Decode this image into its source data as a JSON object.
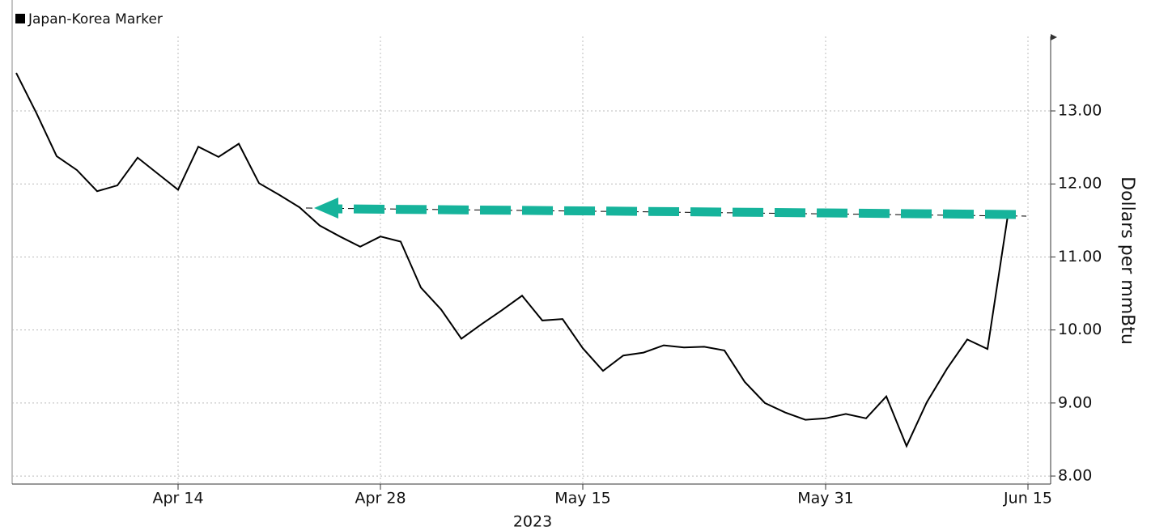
{
  "chart_data": {
    "type": "line",
    "series": [
      {
        "name": "Japan-Korea Marker",
        "color": "#000000",
        "values": [
          13.52,
          12.97,
          12.38,
          12.19,
          11.9,
          11.98,
          12.36,
          12.14,
          11.92,
          12.51,
          12.37,
          12.55,
          12.01,
          11.85,
          11.68,
          11.43,
          11.28,
          11.14,
          11.28,
          11.21,
          10.58,
          10.28,
          9.88,
          10.08,
          10.27,
          10.47,
          10.13,
          10.15,
          9.75,
          9.44,
          9.65,
          9.69,
          9.79,
          9.76,
          9.77,
          9.72,
          9.29,
          9.0,
          8.87,
          8.77,
          8.79,
          8.85,
          8.79,
          9.09,
          8.41,
          9.01,
          9.47,
          9.87,
          9.74,
          11.56,
          null
        ]
      }
    ],
    "categories": [
      null,
      null,
      null,
      null,
      null,
      null,
      null,
      null,
      "Apr 14",
      null,
      null,
      null,
      null,
      null,
      null,
      null,
      null,
      null,
      "Apr 28",
      null,
      null,
      null,
      null,
      null,
      null,
      null,
      null,
      null,
      "May 15",
      null,
      null,
      null,
      null,
      null,
      null,
      null,
      null,
      null,
      null,
      null,
      "May 31",
      null,
      null,
      null,
      null,
      null,
      null,
      null,
      null,
      null,
      "Jun 15"
    ],
    "x_sublabel": "2023",
    "y_label": "Dollars per mmBtu",
    "ylim": [
      7.89,
      14.02
    ],
    "yticks": [
      {
        "value": 8,
        "label": "8.00"
      },
      {
        "value": 9,
        "label": "9.00"
      },
      {
        "value": 10,
        "label": "10.00"
      },
      {
        "value": 11,
        "label": "11.00"
      },
      {
        "value": 12,
        "label": "12.00"
      },
      {
        "value": 13,
        "label": "13.00"
      }
    ],
    "grid": true,
    "y_axis_side": "right",
    "legend": "top-left"
  }
}
